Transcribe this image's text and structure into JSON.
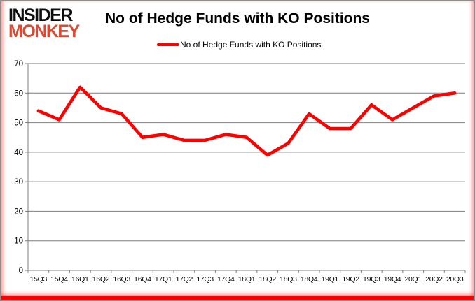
{
  "logo": {
    "line1": "INSIDER",
    "line2": "MONKEY",
    "monkey_color": "#d94a32",
    "insider_color": "#0d0d0d"
  },
  "header": {
    "title": "No of Hedge Funds with KO Positions"
  },
  "legend": {
    "label": "No of Hedge Funds with KO Positions",
    "line_color": "#ff0000",
    "position": "top-center"
  },
  "chart_data": {
    "type": "line",
    "title": "No of Hedge Funds with KO Positions",
    "categories": [
      "15Q3",
      "15Q4",
      "16Q1",
      "16Q2",
      "16Q3",
      "16Q4",
      "17Q1",
      "17Q2",
      "17Q3",
      "17Q4",
      "18Q1",
      "18Q2",
      "18Q3",
      "18Q4",
      "19Q1",
      "19Q2",
      "19Q3",
      "19Q4",
      "20Q1",
      "20Q2",
      "20Q3"
    ],
    "series": [
      {
        "name": "No of Hedge Funds with KO Positions",
        "color": "#ff0000",
        "values": [
          54,
          51,
          62,
          55,
          53,
          45,
          46,
          44,
          44,
          46,
          45,
          39,
          43,
          53,
          48,
          48,
          56,
          51,
          55,
          59,
          60
        ]
      }
    ],
    "xlabel": "",
    "ylabel": "",
    "ylim": [
      0,
      70
    ],
    "yticks": [
      0,
      10,
      20,
      30,
      40,
      50,
      60,
      70
    ],
    "grid": true,
    "gridline_color": "#7f7f7f",
    "axis_color": "#7f7f7f",
    "tick_label_color": "#000000",
    "legend_position": "top"
  }
}
